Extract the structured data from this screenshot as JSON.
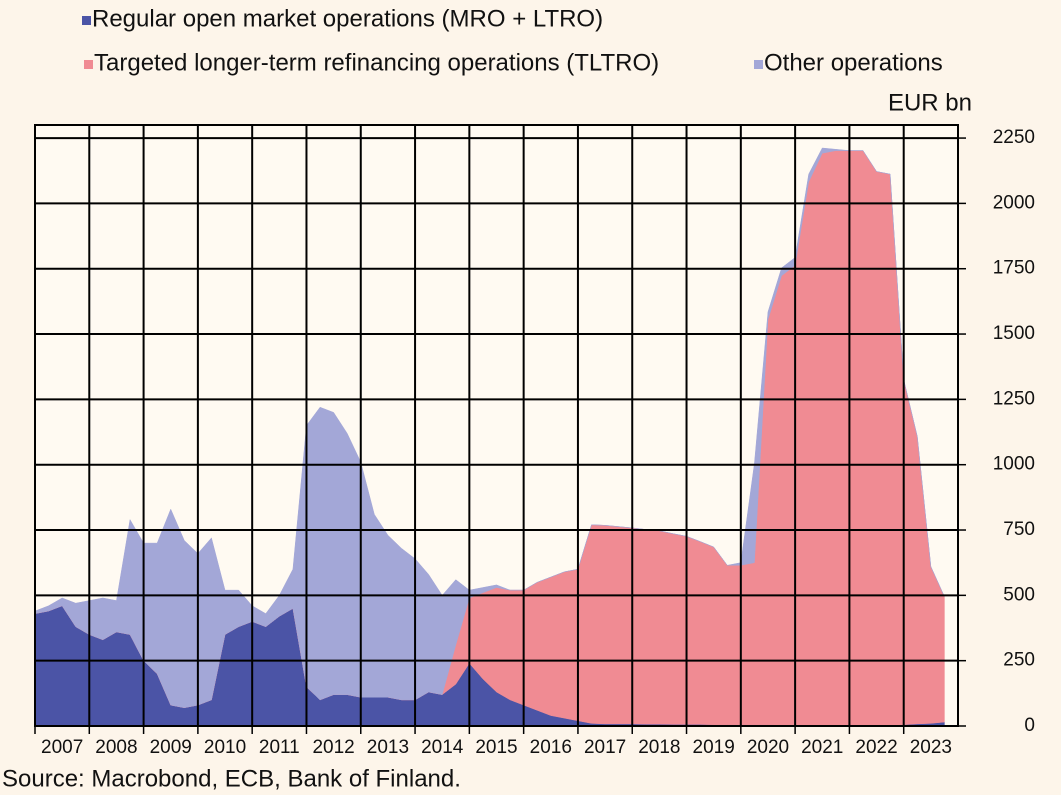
{
  "chart_data": {
    "type": "stacked_area",
    "unit_label": "EUR bn",
    "source": "Source: Macrobond, ECB, Bank of Finland.",
    "x": [
      2007,
      2007.25,
      2007.5,
      2007.75,
      2008,
      2008.25,
      2008.5,
      2008.75,
      2009,
      2009.25,
      2009.5,
      2009.75,
      2010,
      2010.25,
      2010.5,
      2010.75,
      2011,
      2011.25,
      2011.5,
      2011.75,
      2012,
      2012.25,
      2012.5,
      2012.75,
      2013,
      2013.25,
      2013.5,
      2013.75,
      2014,
      2014.25,
      2014.5,
      2014.75,
      2015,
      2015.25,
      2015.5,
      2015.75,
      2016,
      2016.25,
      2016.5,
      2016.75,
      2017,
      2017.25,
      2017.5,
      2017.75,
      2018,
      2018.25,
      2018.5,
      2018.75,
      2019,
      2019.25,
      2019.5,
      2019.75,
      2020,
      2020.25,
      2020.5,
      2020.75,
      2021,
      2021.25,
      2021.5,
      2021.75,
      2022,
      2022.25,
      2022.5,
      2022.75,
      2023,
      2023.25,
      2023.5,
      2023.75
    ],
    "series": [
      {
        "name": "Regular open market operations (MRO + LTRO)",
        "color": "#4b54a6",
        "values": [
          430,
          440,
          460,
          380,
          350,
          330,
          360,
          350,
          250,
          200,
          80,
          70,
          80,
          100,
          350,
          380,
          400,
          380,
          420,
          450,
          150,
          100,
          120,
          120,
          110,
          110,
          110,
          100,
          100,
          130,
          120,
          160,
          240,
          180,
          130,
          100,
          80,
          60,
          40,
          30,
          20,
          10,
          8,
          8,
          8,
          7,
          7,
          6,
          6,
          6,
          5,
          5,
          5,
          5,
          5,
          3,
          3,
          2,
          2,
          2,
          2,
          2,
          2,
          2,
          5,
          8,
          10,
          15
        ]
      },
      {
        "name": "Targeted longer-term refinancing operations (TLTRO)",
        "color": "#f08b93",
        "values": [
          0,
          0,
          0,
          0,
          0,
          0,
          0,
          0,
          0,
          0,
          0,
          0,
          0,
          0,
          0,
          0,
          0,
          0,
          0,
          0,
          0,
          0,
          0,
          0,
          0,
          0,
          0,
          0,
          0,
          0,
          0,
          150,
          250,
          330,
          400,
          420,
          440,
          490,
          530,
          560,
          580,
          760,
          760,
          755,
          750,
          745,
          740,
          730,
          720,
          700,
          680,
          610,
          610,
          620,
          1550,
          1720,
          1760,
          2080,
          2190,
          2200,
          2200,
          2200,
          2120,
          2110,
          1320,
          1100,
          600,
          480
        ]
      },
      {
        "name": "Other operations",
        "color": "#a3a7d7",
        "values": [
          10,
          20,
          30,
          90,
          130,
          160,
          120,
          440,
          450,
          500,
          750,
          640,
          580,
          620,
          170,
          140,
          60,
          50,
          80,
          150,
          1000,
          1120,
          1080,
          1000,
          900,
          700,
          620,
          580,
          540,
          450,
          380,
          250,
          30,
          20,
          10,
          0,
          0,
          0,
          0,
          0,
          0,
          0,
          0,
          0,
          0,
          0,
          0,
          0,
          0,
          0,
          0,
          0,
          10,
          380,
          30,
          30,
          30,
          30,
          20,
          5,
          0,
          0,
          0,
          0,
          0,
          0,
          0,
          0
        ]
      }
    ],
    "xlim": [
      2007,
      2024
    ],
    "xticks": [
      2007,
      2008,
      2009,
      2010,
      2011,
      2012,
      2013,
      2014,
      2015,
      2016,
      2017,
      2018,
      2019,
      2020,
      2021,
      2022,
      2023
    ],
    "ylim": [
      0,
      2300
    ],
    "yticks": [
      0,
      250,
      500,
      750,
      1000,
      1250,
      1500,
      1750,
      2000,
      2250
    ],
    "grid": true
  }
}
